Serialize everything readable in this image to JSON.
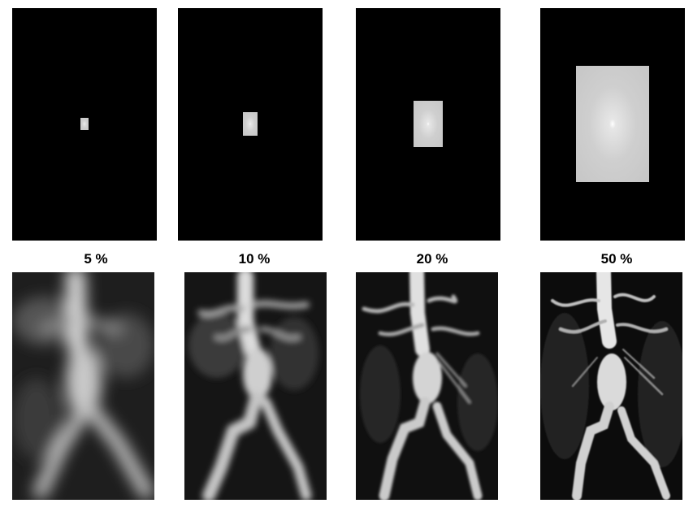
{
  "panels": [
    {
      "label": "5 %",
      "window_fraction": 0.05
    },
    {
      "label": "10 %",
      "window_fraction": 0.1
    },
    {
      "label": "20 %",
      "window_fraction": 0.2
    },
    {
      "label": "50 %",
      "window_fraction": 0.5
    }
  ],
  "colors": {
    "background": "#ffffff",
    "kspace_background": "#000000",
    "label": "#000000"
  }
}
